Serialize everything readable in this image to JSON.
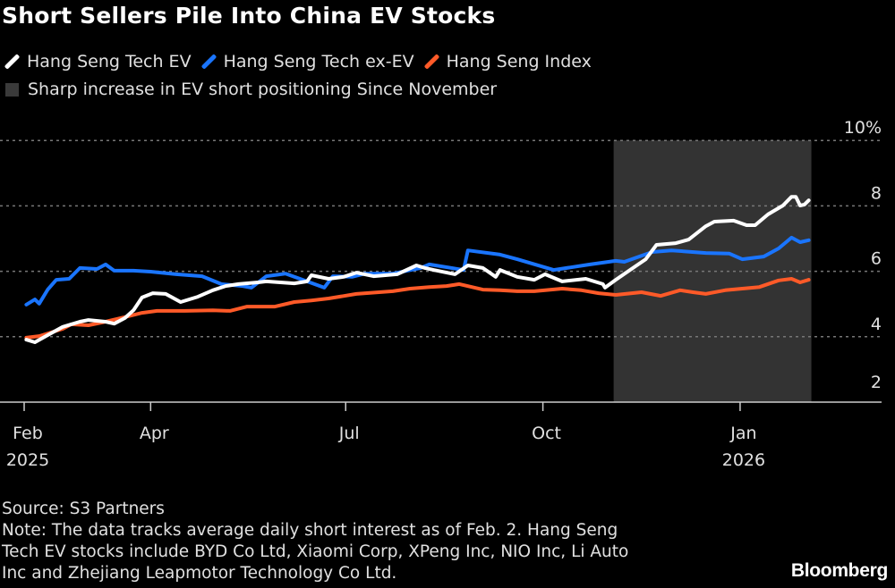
{
  "chart_data": {
    "type": "line",
    "title": "Short Sellers Pile Into China EV Stocks",
    "colors": {
      "background": "#000000",
      "shade": "#333333",
      "grid": "#777777"
    },
    "y_axis": {
      "position": "right",
      "range": [
        2,
        10
      ],
      "ticks": [
        2,
        4,
        6,
        8,
        10
      ],
      "tick_labels": [
        "2",
        "4",
        "6",
        "8",
        "10%"
      ],
      "grid": "dashed"
    },
    "x_axis": {
      "range": [
        "2025-02-01",
        "2026-02-04"
      ],
      "ticks": [
        {
          "date": "2025-02-01",
          "label": "Feb",
          "year": "2025"
        },
        {
          "date": "2025-04-01",
          "label": "Apr",
          "year": ""
        },
        {
          "date": "2025-07-01",
          "label": "Jul",
          "year": ""
        },
        {
          "date": "2025-10-01",
          "label": "Oct",
          "year": ""
        },
        {
          "date": "2026-01-01",
          "label": "Jan",
          "year": "2026"
        }
      ]
    },
    "shaded_region": {
      "label": "Sharp increase in EV short positioning Since November",
      "start": "2025-11-03",
      "end": "2026-02-02",
      "color": "#333333"
    },
    "legend_placement": "top-left",
    "series": [
      {
        "name": "Hang Seng Tech EV",
        "color": "#ffffff",
        "points": [
          [
            "2025-02-02",
            3.91
          ],
          [
            "2025-02-06",
            3.83
          ],
          [
            "2025-02-12",
            4.05
          ],
          [
            "2025-02-19",
            4.3
          ],
          [
            "2025-02-27",
            4.46
          ],
          [
            "2025-03-03",
            4.51
          ],
          [
            "2025-03-11",
            4.46
          ],
          [
            "2025-03-15",
            4.4
          ],
          [
            "2025-03-20",
            4.57
          ],
          [
            "2025-03-24",
            4.81
          ],
          [
            "2025-03-28",
            5.2
          ],
          [
            "2025-04-02",
            5.33
          ],
          [
            "2025-04-08",
            5.31
          ],
          [
            "2025-04-15",
            5.06
          ],
          [
            "2025-04-23",
            5.22
          ],
          [
            "2025-04-30",
            5.42
          ],
          [
            "2025-05-06",
            5.55
          ],
          [
            "2025-05-12",
            5.61
          ],
          [
            "2025-05-21",
            5.66
          ],
          [
            "2025-05-25",
            5.69
          ],
          [
            "2025-06-07",
            5.63
          ],
          [
            "2025-06-13",
            5.69
          ],
          [
            "2025-06-15",
            5.88
          ],
          [
            "2025-06-23",
            5.77
          ],
          [
            "2025-06-30",
            5.83
          ],
          [
            "2025-07-06",
            5.96
          ],
          [
            "2025-07-14",
            5.85
          ],
          [
            "2025-07-25",
            5.91
          ],
          [
            "2025-08-03",
            6.18
          ],
          [
            "2025-08-07",
            6.1
          ],
          [
            "2025-08-11",
            6.04
          ],
          [
            "2025-08-21",
            5.91
          ],
          [
            "2025-08-27",
            6.18
          ],
          [
            "2025-09-03",
            6.1
          ],
          [
            "2025-09-09",
            5.83
          ],
          [
            "2025-09-11",
            6.04
          ],
          [
            "2025-09-19",
            5.83
          ],
          [
            "2025-09-27",
            5.74
          ],
          [
            "2025-10-02",
            5.91
          ],
          [
            "2025-10-10",
            5.69
          ],
          [
            "2025-10-21",
            5.77
          ],
          [
            "2025-10-29",
            5.61
          ],
          [
            "2025-10-30",
            5.5
          ],
          [
            "2025-11-04",
            5.74
          ],
          [
            "2025-11-12",
            6.1
          ],
          [
            "2025-11-18",
            6.37
          ],
          [
            "2025-11-23",
            6.81
          ],
          [
            "2025-12-02",
            6.86
          ],
          [
            "2025-12-08",
            6.97
          ],
          [
            "2025-12-16",
            7.38
          ],
          [
            "2025-12-20",
            7.52
          ],
          [
            "2025-12-29",
            7.55
          ],
          [
            "2026-01-04",
            7.41
          ],
          [
            "2026-01-08",
            7.41
          ],
          [
            "2026-01-14",
            7.74
          ],
          [
            "2026-01-21",
            8.01
          ],
          [
            "2026-01-25",
            8.28
          ],
          [
            "2026-01-27",
            8.28
          ],
          [
            "2026-01-29",
            8.01
          ],
          [
            "2026-01-31",
            8.04
          ],
          [
            "2026-02-02",
            8.17
          ]
        ]
      },
      {
        "name": "Hang Seng Tech ex-EV",
        "color": "#1a75ff",
        "points": [
          [
            "2025-02-02",
            4.98
          ],
          [
            "2025-02-06",
            5.14
          ],
          [
            "2025-02-08",
            5.01
          ],
          [
            "2025-02-12",
            5.44
          ],
          [
            "2025-02-16",
            5.74
          ],
          [
            "2025-02-22",
            5.77
          ],
          [
            "2025-02-27",
            6.1
          ],
          [
            "2025-03-07",
            6.07
          ],
          [
            "2025-03-11",
            6.21
          ],
          [
            "2025-03-15",
            6.02
          ],
          [
            "2025-03-24",
            6.02
          ],
          [
            "2025-04-01",
            5.99
          ],
          [
            "2025-04-13",
            5.91
          ],
          [
            "2025-04-25",
            5.85
          ],
          [
            "2025-05-04",
            5.61
          ],
          [
            "2025-05-14",
            5.55
          ],
          [
            "2025-05-18",
            5.5
          ],
          [
            "2025-05-25",
            5.85
          ],
          [
            "2025-06-03",
            5.93
          ],
          [
            "2025-06-13",
            5.69
          ],
          [
            "2025-06-19",
            5.55
          ],
          [
            "2025-06-21",
            5.5
          ],
          [
            "2025-06-25",
            5.85
          ],
          [
            "2025-07-04",
            5.83
          ],
          [
            "2025-07-10",
            5.93
          ],
          [
            "2025-07-23",
            5.93
          ],
          [
            "2025-08-05",
            6.1
          ],
          [
            "2025-08-09",
            6.21
          ],
          [
            "2025-08-25",
            6.04
          ],
          [
            "2025-08-27",
            6.64
          ],
          [
            "2025-09-11",
            6.51
          ],
          [
            "2025-09-19",
            6.37
          ],
          [
            "2025-10-06",
            6.04
          ],
          [
            "2025-10-23",
            6.21
          ],
          [
            "2025-11-04",
            6.32
          ],
          [
            "2025-11-08",
            6.29
          ],
          [
            "2025-11-21",
            6.59
          ],
          [
            "2025-11-30",
            6.64
          ],
          [
            "2025-12-16",
            6.56
          ],
          [
            "2025-12-27",
            6.54
          ],
          [
            "2026-01-02",
            6.37
          ],
          [
            "2026-01-12",
            6.45
          ],
          [
            "2026-01-19",
            6.7
          ],
          [
            "2026-01-25",
            7.03
          ],
          [
            "2026-01-29",
            6.89
          ],
          [
            "2026-02-02",
            6.95
          ]
        ]
      },
      {
        "name": "Hang Seng Index",
        "color": "#ff5a28",
        "points": [
          [
            "2025-02-02",
            3.97
          ],
          [
            "2025-02-08",
            4.02
          ],
          [
            "2025-02-19",
            4.24
          ],
          [
            "2025-02-23",
            4.38
          ],
          [
            "2025-03-03",
            4.35
          ],
          [
            "2025-03-11",
            4.46
          ],
          [
            "2025-03-20",
            4.6
          ],
          [
            "2025-03-28",
            4.73
          ],
          [
            "2025-04-04",
            4.79
          ],
          [
            "2025-04-17",
            4.79
          ],
          [
            "2025-04-30",
            4.81
          ],
          [
            "2025-05-08",
            4.79
          ],
          [
            "2025-05-16",
            4.92
          ],
          [
            "2025-05-29",
            4.92
          ],
          [
            "2025-06-07",
            5.06
          ],
          [
            "2025-06-15",
            5.11
          ],
          [
            "2025-06-23",
            5.17
          ],
          [
            "2025-07-06",
            5.31
          ],
          [
            "2025-07-23",
            5.39
          ],
          [
            "2025-07-31",
            5.47
          ],
          [
            "2025-08-09",
            5.52
          ],
          [
            "2025-08-17",
            5.55
          ],
          [
            "2025-08-23",
            5.61
          ],
          [
            "2025-09-03",
            5.44
          ],
          [
            "2025-09-11",
            5.42
          ],
          [
            "2025-09-19",
            5.39
          ],
          [
            "2025-09-27",
            5.39
          ],
          [
            "2025-10-10",
            5.47
          ],
          [
            "2025-10-19",
            5.42
          ],
          [
            "2025-10-27",
            5.33
          ],
          [
            "2025-11-04",
            5.28
          ],
          [
            "2025-11-16",
            5.36
          ],
          [
            "2025-11-25",
            5.25
          ],
          [
            "2025-12-04",
            5.42
          ],
          [
            "2025-12-10",
            5.36
          ],
          [
            "2025-12-16",
            5.31
          ],
          [
            "2025-12-25",
            5.42
          ],
          [
            "2026-01-02",
            5.47
          ],
          [
            "2026-01-10",
            5.52
          ],
          [
            "2026-01-19",
            5.72
          ],
          [
            "2026-01-25",
            5.77
          ],
          [
            "2026-01-29",
            5.66
          ],
          [
            "2026-02-02",
            5.74
          ]
        ]
      }
    ]
  },
  "header": {
    "title": "Short Sellers Pile Into China EV Stocks"
  },
  "legend": {
    "items": [
      "Hang Seng Tech EV",
      "Hang Seng Tech ex-EV",
      "Hang Seng Index"
    ],
    "shade_label": "Sharp increase in EV short positioning Since November"
  },
  "footer": {
    "source": "Source: S3 Partners",
    "note_lines": [
      "Note: The data tracks average daily short interest as of Feb. 2. Hang Seng",
      "Tech EV stocks include BYD Co Ltd, Xiaomi Corp, XPeng Inc, NIO Inc, Li Auto",
      "Inc and Zhejiang Leapmotor Technology Co Ltd."
    ],
    "logo": "Bloomberg"
  }
}
